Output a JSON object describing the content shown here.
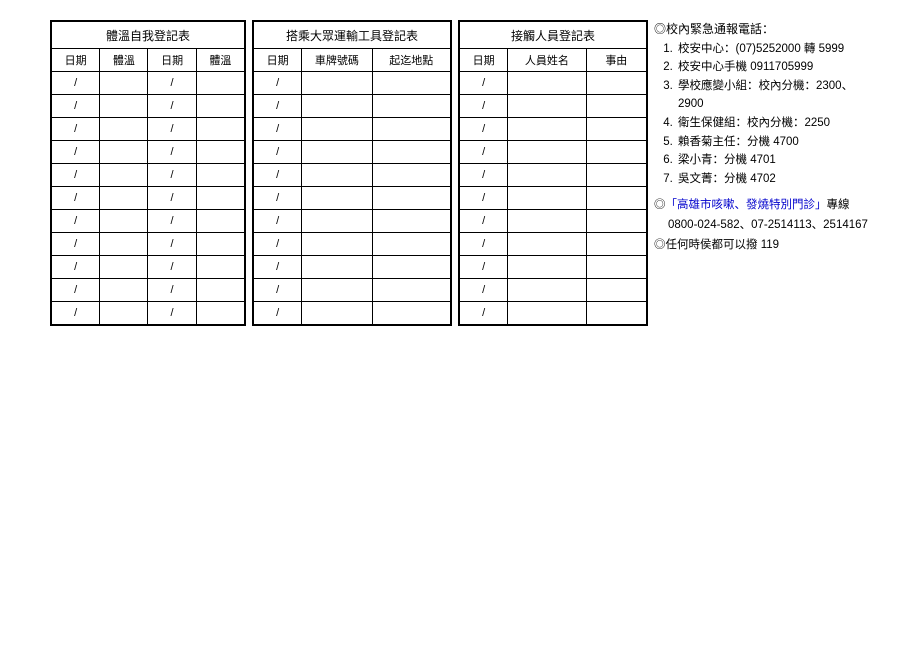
{
  "rows": 11,
  "slash": "/",
  "table1": {
    "title": "體溫自我登記表",
    "headers": [
      "日期",
      "體溫",
      "日期",
      "體溫"
    ]
  },
  "table2": {
    "title": "搭乘大眾運輸工具登記表",
    "headers": [
      "日期",
      "車牌號碼",
      "起迄地點"
    ]
  },
  "table3": {
    "title": "接觸人員登記表",
    "headers": [
      "日期",
      "人員姓名",
      "事由"
    ]
  },
  "info": {
    "title": "◎校內緊急通報電話：",
    "items": [
      "校安中心：(07)5252000 轉 5999",
      "校安中心手機 0911705999",
      "學校應變小組：校內分機：2300、2900",
      "衛生保健組：校內分機：2250",
      "賴香菊主任：分機 4700",
      "梁小青：分機 4701",
      "吳文菁：分機 4702"
    ],
    "hotline_prefix": "◎",
    "hotline_link": "「高雄市咳嗽、發燒特別門診」",
    "hotline_suffix": "專線",
    "hotline_nums": "0800-024-582、07-2514113、2514167",
    "anytime": "◎任何時侯都可以撥 119"
  }
}
